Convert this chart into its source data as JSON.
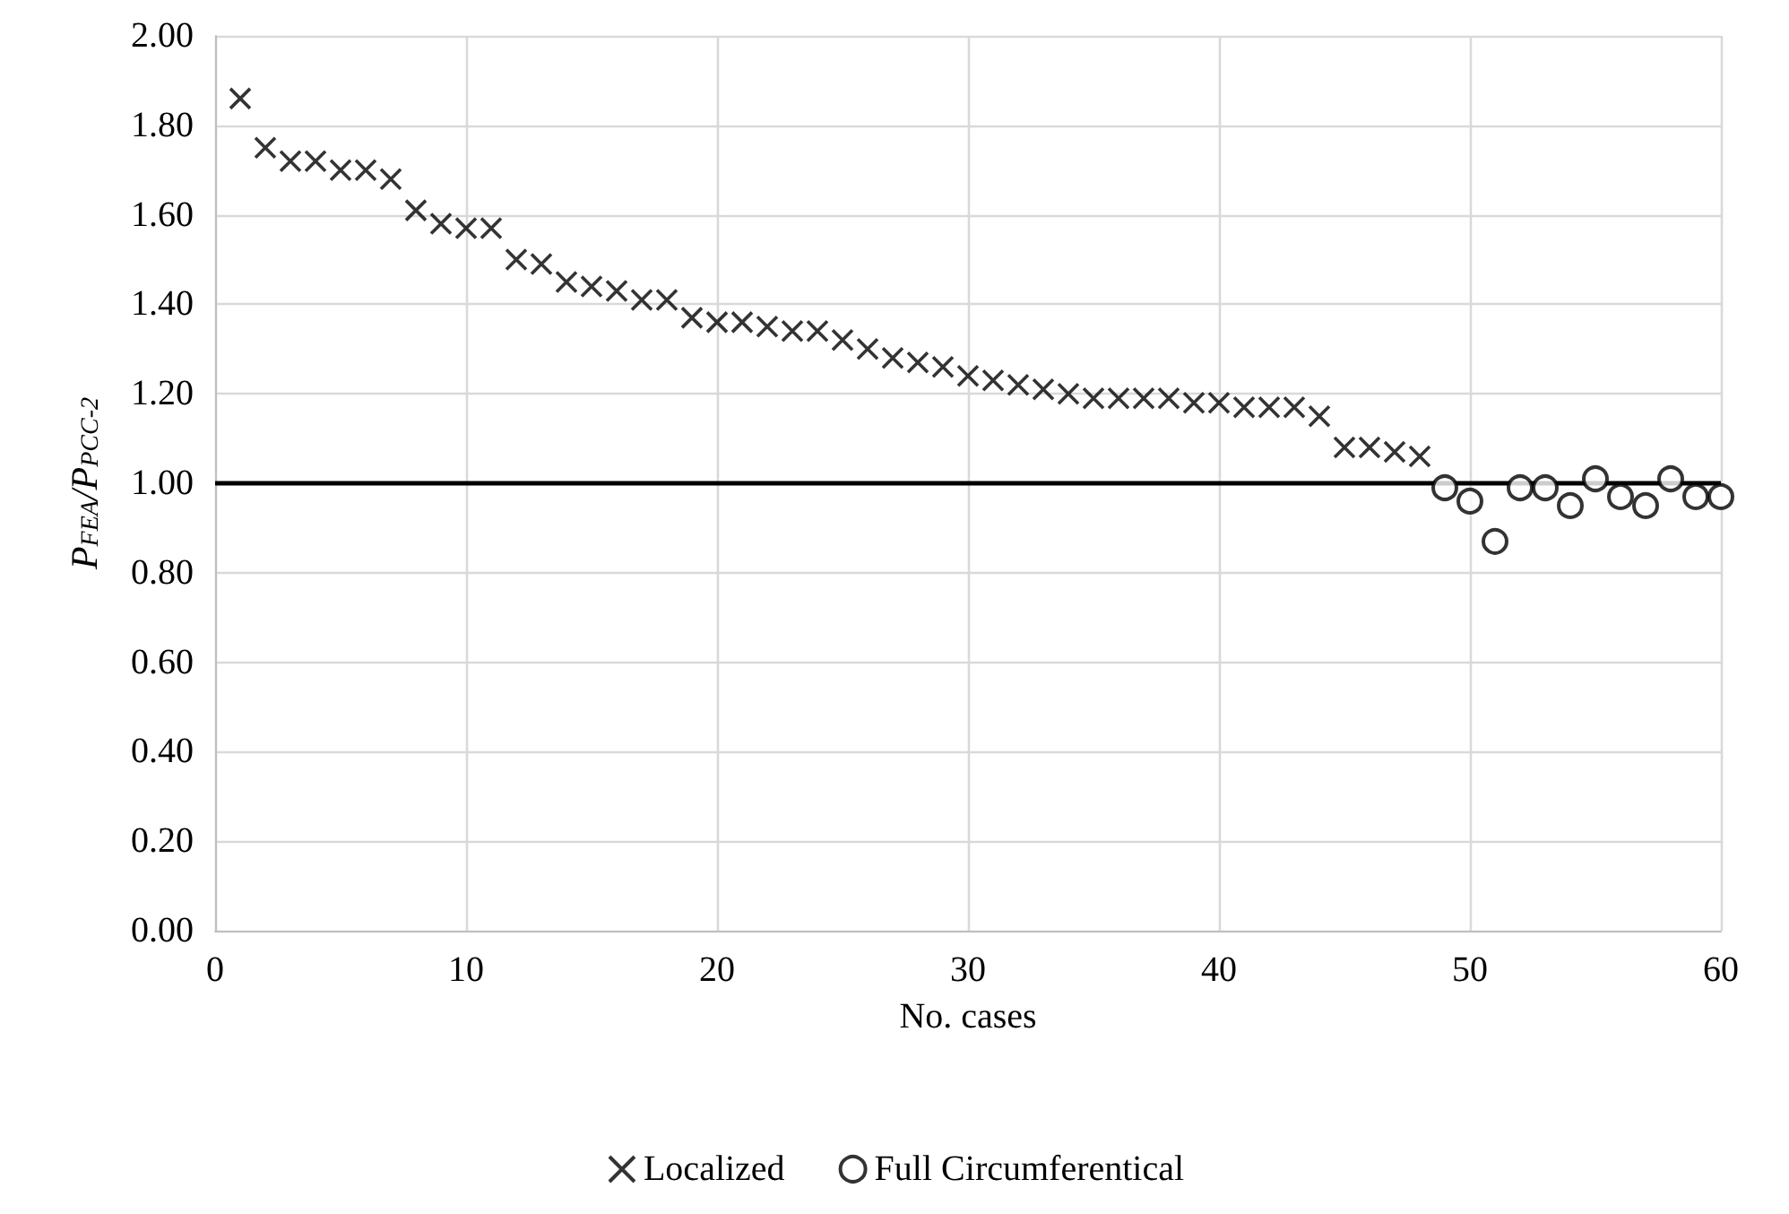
{
  "chart_data": {
    "type": "scatter",
    "xlabel": "No. cases",
    "ylabel": "P$_{FEA}$/P$_{PCC-2}$",
    "xlim": [
      0,
      60
    ],
    "xticks": [
      0,
      10,
      20,
      30,
      40,
      50,
      60
    ],
    "ylim": [
      0,
      2
    ],
    "yticks": [
      {
        "value": 0,
        "label": "0.00"
      },
      {
        "value": 0.2,
        "label": "0.20"
      },
      {
        "value": 0.4,
        "label": "0.40"
      },
      {
        "value": 0.6,
        "label": "0.60"
      },
      {
        "value": 0.8,
        "label": "0.80"
      },
      {
        "value": 1,
        "label": "1.00"
      },
      {
        "value": 1.2,
        "label": "1.20"
      },
      {
        "value": 1.4,
        "label": "1.40"
      },
      {
        "value": 1.6,
        "label": "1.60"
      },
      {
        "value": 1.8,
        "label": "1.80"
      },
      {
        "value": 2,
        "label": "2.00"
      }
    ],
    "grid": true,
    "legend": "bottom",
    "ref_lines": [
      {
        "axis": "y",
        "value": 1,
        "color": "#000000",
        "line_style": "solid"
      }
    ],
    "series": [
      {
        "name": "Localized",
        "color": "#000000",
        "marker": "cross",
        "x": [
          1,
          2,
          3,
          4,
          5,
          6,
          7,
          8,
          9,
          10,
          11,
          12,
          13,
          14,
          15,
          16,
          17,
          18,
          19,
          20,
          21,
          22,
          23,
          24,
          25,
          26,
          27,
          28,
          29,
          30,
          31,
          32,
          33,
          34,
          35,
          36,
          37,
          38,
          39,
          40,
          41,
          42,
          43,
          44,
          45,
          46,
          47,
          48
        ],
        "values": [
          1.86,
          1.75,
          1.72,
          1.72,
          1.7,
          1.7,
          1.68,
          1.61,
          1.58,
          1.57,
          1.57,
          1.5,
          1.49,
          1.45,
          1.44,
          1.43,
          1.41,
          1.41,
          1.37,
          1.36,
          1.36,
          1.35,
          1.34,
          1.34,
          1.32,
          1.3,
          1.28,
          1.27,
          1.26,
          1.24,
          1.23,
          1.22,
          1.21,
          1.2,
          1.19,
          1.19,
          1.19,
          1.19,
          1.18,
          1.18,
          1.17,
          1.17,
          1.17,
          1.15,
          1.08,
          1.08,
          1.07,
          1.06
        ]
      },
      {
        "name": "Full Circumferentical",
        "color": "#000000",
        "marker": "circle",
        "x": [
          49,
          50,
          51,
          52,
          53,
          54,
          55,
          56,
          57,
          58,
          59,
          60
        ],
        "values": [
          0.99,
          0.96,
          0.87,
          0.99,
          0.99,
          0.95,
          1.01,
          0.97,
          0.95,
          1.01,
          0.97,
          0.97
        ]
      }
    ]
  }
}
